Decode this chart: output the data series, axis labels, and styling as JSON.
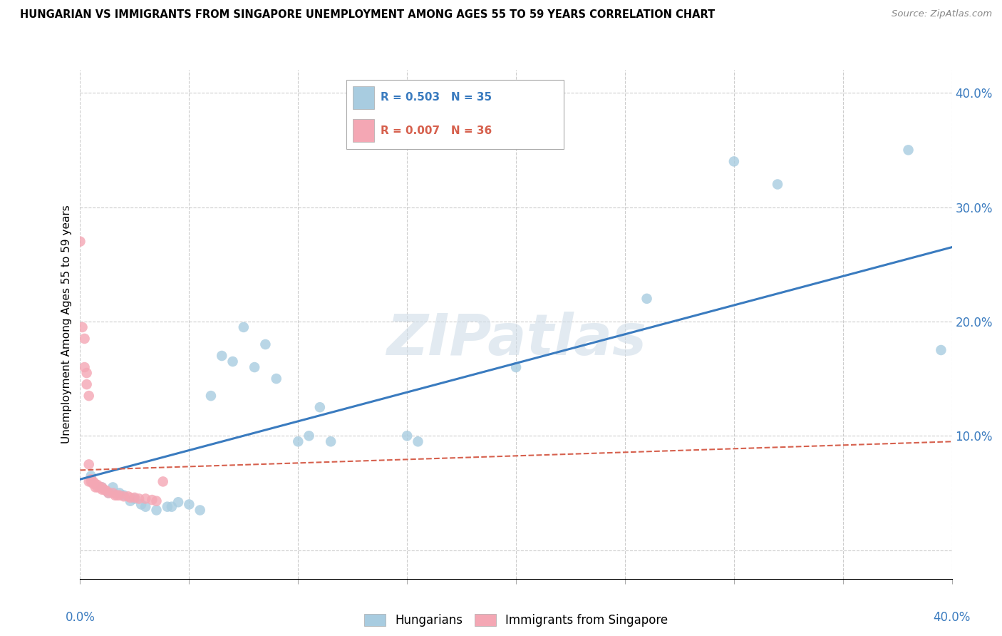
{
  "title": "HUNGARIAN VS IMMIGRANTS FROM SINGAPORE UNEMPLOYMENT AMONG AGES 55 TO 59 YEARS CORRELATION CHART",
  "source": "Source: ZipAtlas.com",
  "ylabel": "Unemployment Among Ages 55 to 59 years",
  "xlim": [
    0.0,
    0.4
  ],
  "ylim": [
    -0.025,
    0.42
  ],
  "yticks": [
    0.0,
    0.1,
    0.2,
    0.3,
    0.4
  ],
  "ytick_labels": [
    "",
    "10.0%",
    "20.0%",
    "30.0%",
    "40.0%"
  ],
  "xtick_vals": [
    0.0,
    0.05,
    0.1,
    0.15,
    0.2,
    0.25,
    0.3,
    0.35,
    0.4
  ],
  "legend_blue_r": "R = 0.503",
  "legend_blue_n": "N = 35",
  "legend_pink_r": "R = 0.007",
  "legend_pink_n": "N = 36",
  "blue_color": "#a8cce0",
  "pink_color": "#f4a7b4",
  "blue_line_color": "#3a7bbf",
  "pink_line_color": "#d6604d",
  "watermark": "ZIPatlas",
  "hungarian_x": [
    0.005,
    0.01,
    0.013,
    0.015,
    0.018,
    0.02,
    0.023,
    0.025,
    0.028,
    0.03,
    0.035,
    0.04,
    0.042,
    0.045,
    0.05,
    0.055,
    0.06,
    0.065,
    0.07,
    0.075,
    0.08,
    0.085,
    0.09,
    0.1,
    0.105,
    0.11,
    0.115,
    0.15,
    0.155,
    0.2,
    0.26,
    0.3,
    0.32,
    0.38,
    0.395
  ],
  "hungarian_y": [
    0.065,
    0.055,
    0.05,
    0.055,
    0.05,
    0.048,
    0.043,
    0.045,
    0.04,
    0.038,
    0.035,
    0.038,
    0.038,
    0.042,
    0.04,
    0.035,
    0.135,
    0.17,
    0.165,
    0.195,
    0.16,
    0.18,
    0.15,
    0.095,
    0.1,
    0.125,
    0.095,
    0.1,
    0.095,
    0.16,
    0.22,
    0.34,
    0.32,
    0.35,
    0.175
  ],
  "singapore_x": [
    0.0,
    0.001,
    0.002,
    0.002,
    0.003,
    0.003,
    0.004,
    0.004,
    0.004,
    0.005,
    0.005,
    0.006,
    0.006,
    0.007,
    0.007,
    0.008,
    0.008,
    0.009,
    0.01,
    0.01,
    0.011,
    0.012,
    0.013,
    0.015,
    0.016,
    0.017,
    0.018,
    0.02,
    0.022,
    0.023,
    0.025,
    0.027,
    0.03,
    0.033,
    0.035,
    0.038
  ],
  "singapore_y": [
    0.27,
    0.195,
    0.185,
    0.16,
    0.155,
    0.145,
    0.135,
    0.075,
    0.06,
    0.062,
    0.06,
    0.06,
    0.058,
    0.058,
    0.055,
    0.057,
    0.055,
    0.055,
    0.055,
    0.053,
    0.053,
    0.052,
    0.05,
    0.05,
    0.048,
    0.048,
    0.048,
    0.047,
    0.047,
    0.046,
    0.046,
    0.045,
    0.045,
    0.044,
    0.043,
    0.06
  ],
  "blue_line_x": [
    0.0,
    0.4
  ],
  "blue_line_y": [
    0.062,
    0.265
  ],
  "pink_line_x": [
    0.0,
    0.4
  ],
  "pink_line_y": [
    0.07,
    0.095
  ]
}
